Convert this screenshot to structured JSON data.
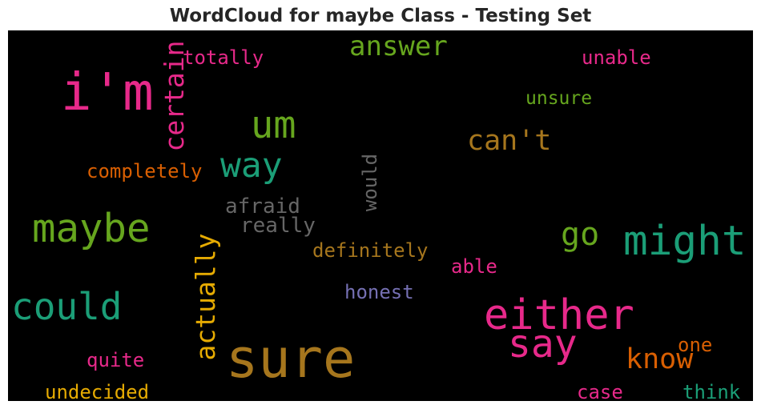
{
  "title": "WordCloud for maybe Class - Testing Set",
  "colors": {
    "background": "#000000",
    "pink": "#e7298a",
    "green": "#66a61e",
    "teal": "#1b9e77",
    "orange": "#d95f02",
    "gold": "#e6ab02",
    "brown": "#a6761d",
    "purple": "#7570b3",
    "gray": "#666666"
  },
  "words": {
    "sure": "sure",
    "im": "i'm",
    "maybe": "maybe",
    "might": "might",
    "either": "either",
    "could": "could",
    "say": "say",
    "um": "um",
    "way": "way",
    "certain": "certain",
    "actually": "actually",
    "answer": "answer",
    "know": "know",
    "cant": "can't",
    "go": "go",
    "totally": "totally",
    "unable": "unable",
    "unsure": "unsure",
    "completely": "completely",
    "afraid": "afraid",
    "would": "would",
    "really": "really",
    "definitely": "definitely",
    "able": "able",
    "honest": "honest",
    "quite": "quite",
    "one": "one",
    "undecided": "undecided",
    "case": "case",
    "think": "think"
  }
}
